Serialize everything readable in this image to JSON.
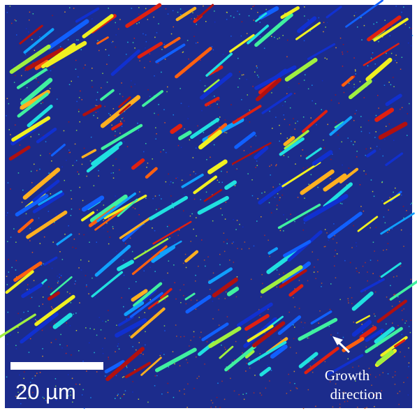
{
  "scale_bar": {
    "label": "20 µm"
  },
  "annotation": {
    "line1": "Growth",
    "line2": "direction"
  }
}
